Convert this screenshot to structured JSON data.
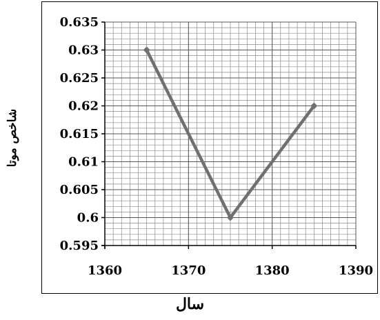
{
  "chart_data": {
    "type": "line",
    "title": "",
    "xlabel": "سال",
    "ylabel": "شاخص موتا",
    "x": [
      1365,
      1375,
      1385
    ],
    "series": [
      {
        "values": [
          0.63,
          0.6,
          0.62
        ]
      }
    ],
    "xlim": [
      1360,
      1390
    ],
    "ylim": [
      0.595,
      0.635
    ],
    "xticks": [
      1360,
      1370,
      1380,
      1390
    ],
    "yticks": [
      0.595,
      0.6,
      0.605,
      0.61,
      0.615,
      0.62,
      0.625,
      0.63,
      0.635
    ],
    "xtick_labels": [
      "1360",
      "1370",
      "1380",
      "1390"
    ],
    "ytick_labels": [
      "0.595",
      "0.6",
      "0.605",
      "0.61",
      "0.615",
      "0.62",
      "0.625",
      "0.63",
      "0.635"
    ],
    "grid": true,
    "line_color": "#707070",
    "grid_color": "#8a8a8a",
    "legend": "none"
  }
}
